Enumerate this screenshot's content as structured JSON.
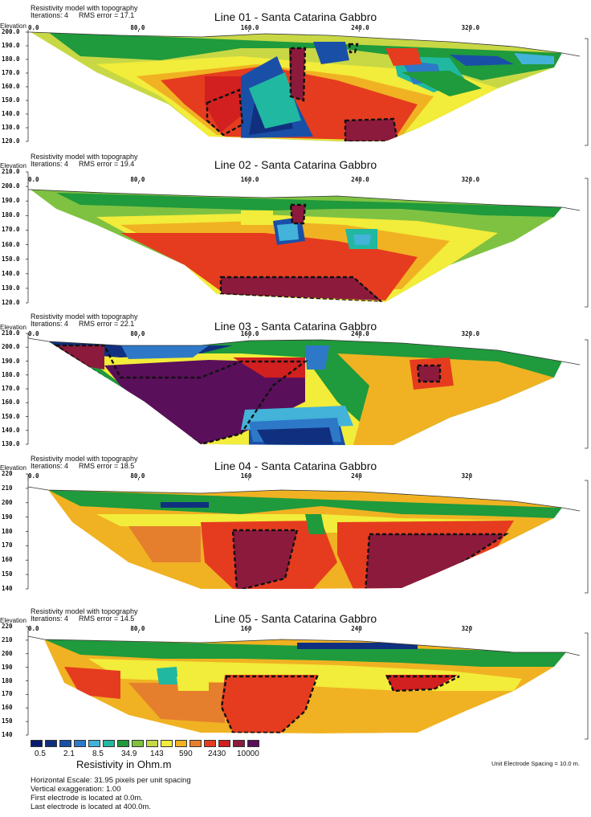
{
  "chart_data": [
    {
      "type": "heatmap",
      "header_line1": "Resistivity model with topography",
      "header_iter": "Iterations: 4",
      "header_rms": "RMS error = 17.1",
      "title": "Line 01 - Santa Catarina Gabbro",
      "ylabel": "Elevation",
      "y_ticks": [
        "200.0",
        "190.0",
        "180.0",
        "170.0",
        "160.0",
        "150.0",
        "140.0",
        "130.0",
        "120.0"
      ],
      "y_values": [
        200,
        190,
        180,
        170,
        160,
        150,
        140,
        130,
        120
      ],
      "x_ticks": [
        "0.0",
        "80.0",
        "160.0",
        "240.0",
        "320.0"
      ],
      "x_values": [
        0,
        80,
        160,
        240,
        320
      ],
      "xlim": [
        0,
        400
      ]
    },
    {
      "type": "heatmap",
      "header_line1": "Resistivity model with topography",
      "header_iter": "Iterations: 4",
      "header_rms": "RMS error = 19.4",
      "title": "Line 02 - Santa Catarina Gabbro",
      "ylabel": "Elevation",
      "y_ticks": [
        "210.0",
        "200.0",
        "190.0",
        "180.0",
        "170.0",
        "160.0",
        "150.0",
        "140.0",
        "130.0",
        "120.0"
      ],
      "y_values": [
        210,
        200,
        190,
        180,
        170,
        160,
        150,
        140,
        130,
        120
      ],
      "x_ticks": [
        "0.0",
        "80.0",
        "160.0",
        "240.0",
        "320.0"
      ],
      "x_values": [
        0,
        80,
        160,
        240,
        320
      ],
      "xlim": [
        0,
        400
      ]
    },
    {
      "type": "heatmap",
      "header_line1": "Resistivity model with topography",
      "header_iter": "Iterations: 4",
      "header_rms": "RMS error = 22.1",
      "title": "Line 03 - Santa Catarina Gabbro",
      "ylabel": "Elevation",
      "y_ticks": [
        "210.0",
        "200.0",
        "190.0",
        "180.0",
        "170.0",
        "160.0",
        "150.0",
        "140.0",
        "130.0"
      ],
      "y_values": [
        210,
        200,
        190,
        180,
        170,
        160,
        150,
        140,
        130
      ],
      "x_ticks": [
        "0.0",
        "80.0",
        "160.0",
        "240.0",
        "320.0"
      ],
      "x_values": [
        0,
        80,
        160,
        240,
        320
      ],
      "xlim": [
        0,
        400
      ]
    },
    {
      "type": "heatmap",
      "header_line1": "Resistivity model with topography",
      "header_iter": "Iterations: 4",
      "header_rms": "RMS error = 18.5",
      "title": "Line 04 - Santa Catarina Gabbro",
      "ylabel": "Elevation",
      "y_ticks": [
        "220",
        "210",
        "200",
        "190",
        "180",
        "170",
        "160",
        "150",
        "140"
      ],
      "y_values": [
        220,
        210,
        200,
        190,
        180,
        170,
        160,
        150,
        140
      ],
      "x_ticks": [
        "0.0",
        "80.0",
        "160",
        "240",
        "320"
      ],
      "x_values": [
        0,
        80,
        160,
        240,
        320
      ],
      "xlim": [
        0,
        400
      ]
    },
    {
      "type": "heatmap",
      "header_line1": "Resistivity model with topography",
      "header_iter": "Iterations: 4",
      "header_rms": "RMS error = 14.5",
      "title": "Line 05 - Santa Catarina Gabbro",
      "ylabel": "Elevation",
      "y_ticks": [
        "220",
        "210",
        "200",
        "190",
        "180",
        "170",
        "160",
        "150",
        "140"
      ],
      "y_values": [
        220,
        210,
        200,
        190,
        180,
        170,
        160,
        150,
        140
      ],
      "x_ticks": [
        "0.0",
        "80.0",
        "160",
        "240",
        "320"
      ],
      "x_values": [
        0,
        80,
        160,
        240,
        320
      ],
      "xlim": [
        0,
        400
      ]
    }
  ],
  "legend": {
    "title": "Resistivity in Ohm.m",
    "labels": [
      "0.5",
      "2.1",
      "8.5",
      "34.9",
      "143",
      "590",
      "2430",
      "10000"
    ],
    "colors": [
      "#0a1a6e",
      "#10307f",
      "#1a4fa8",
      "#2e78c8",
      "#43b3d9",
      "#20b8a0",
      "#1f9a3c",
      "#7fc242",
      "#c8d845",
      "#f2ec3a",
      "#f0b222",
      "#e57f2d",
      "#e53c1f",
      "#d21f1f",
      "#8c1a3d",
      "#5a0f5a"
    ]
  },
  "unit_spacing": "Unit Electrode Spacing = 10.0 m.",
  "footer": {
    "line1": "Horizontal Escale: 31.95 pixels per unit spacing",
    "line2": "Vertical exaggeration: 1.00",
    "line3": "First electrode is located at 0.0m.",
    "line4": "Last electrode is located at 400.0m."
  }
}
